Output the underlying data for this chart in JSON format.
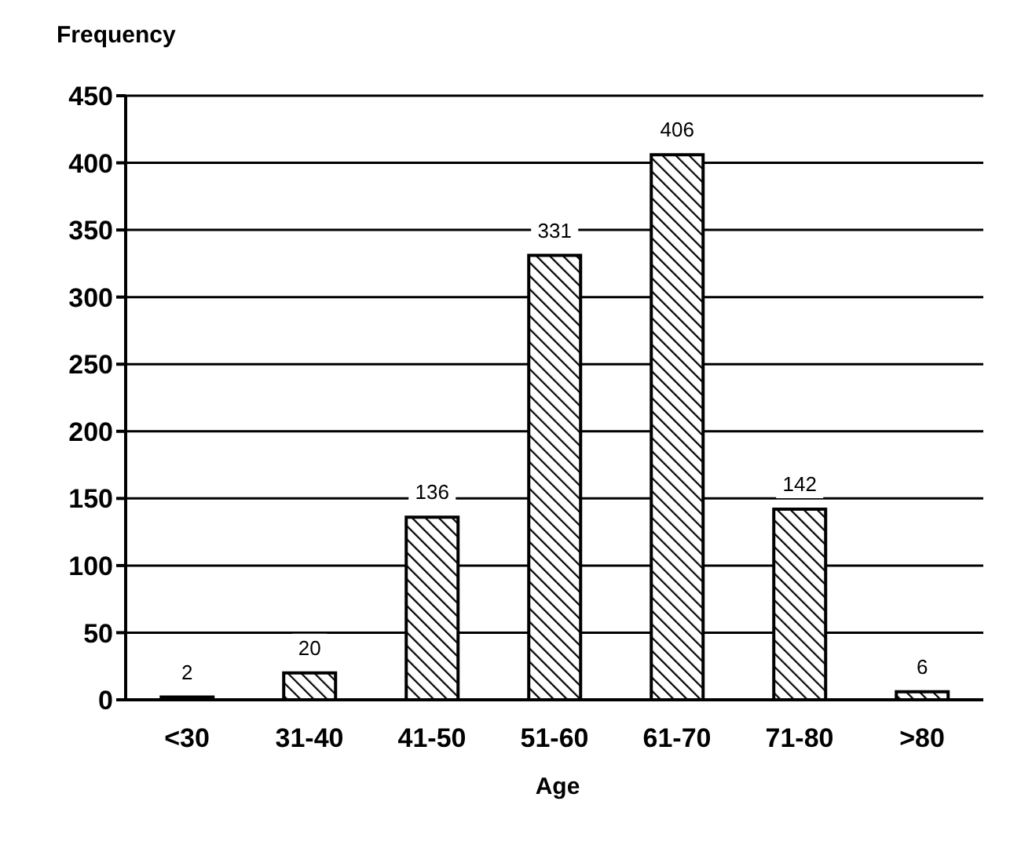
{
  "chart_data": {
    "type": "bar",
    "ylabel": "Frequency",
    "xlabel": "Age",
    "categories": [
      "<30",
      "31-40",
      "41-50",
      "51-60",
      "61-70",
      "71-80",
      ">80"
    ],
    "values": [
      2,
      20,
      136,
      331,
      406,
      142,
      6
    ],
    "color": "#000000",
    "ylim": [
      0,
      450
    ],
    "yticks": [
      0,
      50,
      100,
      150,
      200,
      250,
      300,
      350,
      400,
      450
    ],
    "grid": "y",
    "data_labels": true
  }
}
